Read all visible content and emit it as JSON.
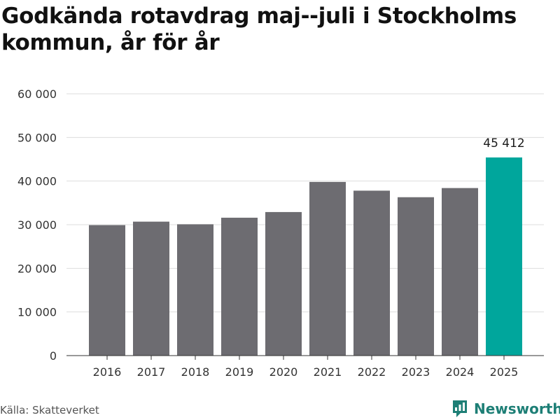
{
  "title": "Godkända rotavdrag maj--juli i Stockholms kommun, år för år",
  "source": "Källa: Skatteverket",
  "brand": {
    "name": "Newsworthy",
    "icon": "newsworthy-logo-icon",
    "color": "#1e7f76"
  },
  "colors": {
    "bar": "#6d6c71",
    "highlight": "#00a69c",
    "grid": "#dddddd",
    "axis": "#333333"
  },
  "chart_data": {
    "type": "bar",
    "title": "Godkända rotavdrag maj--juli i Stockholms kommun, år för år",
    "xlabel": "",
    "ylabel": "",
    "categories": [
      "2016",
      "2017",
      "2018",
      "2019",
      "2020",
      "2021",
      "2022",
      "2023",
      "2024",
      "2025"
    ],
    "values": [
      29900,
      30700,
      30100,
      31600,
      32900,
      39800,
      37800,
      36300,
      38400,
      45412
    ],
    "highlight_index": 9,
    "data_labels": [
      {
        "index": 9,
        "text": "45 412"
      }
    ],
    "ylim": [
      0,
      60000
    ],
    "yticks": [
      0,
      10000,
      20000,
      30000,
      40000,
      50000,
      60000
    ],
    "ytick_labels": [
      "0",
      "10 000",
      "20 000",
      "30 000",
      "40 000",
      "50 000",
      "60 000"
    ],
    "grid": true,
    "legend": "none"
  }
}
